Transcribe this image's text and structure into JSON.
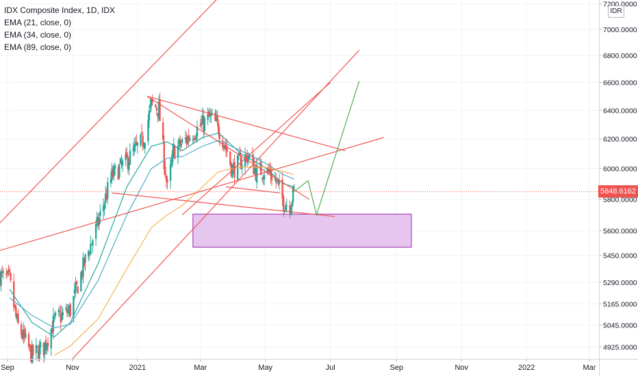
{
  "legend": {
    "title": "IDX Composite Index, 1D, IDX",
    "ema21": "EMA (21, close, 0)",
    "ema34": "EMA (34, close, 0)",
    "ema89": "EMA (89, close, 0)"
  },
  "currency_badge": "IDR",
  "last_price_label": "5848.6162",
  "colors": {
    "up": "#26a69a",
    "down": "#ef5350",
    "ema21": "#26a69a",
    "ema34": "#4dabc9",
    "ema89": "#f5b453",
    "trendline": "#ef5350",
    "projection": "#4caf50",
    "zone_fill": "#e6c6ee",
    "zone_border": "#9c27b0",
    "axis_text": "#131722",
    "grid": "#f0f3fa"
  },
  "chart_data": {
    "type": "candlestick",
    "title": "IDX Composite Index, 1D, IDX",
    "xlabel": "",
    "ylabel": "",
    "x_ticks": [
      "Sep",
      "Nov",
      "2021",
      "Mar",
      "May",
      "Jul",
      "Sep",
      "Nov",
      "2022",
      "Mar"
    ],
    "x_tick_dates": [
      "2020-09-01",
      "2020-11-01",
      "2021-01-01",
      "2021-03-01",
      "2021-05-01",
      "2021-07-01",
      "2021-09-01",
      "2021-11-01",
      "2022-01-01",
      "2022-03-01"
    ],
    "y_ticks": [
      7200,
      7000,
      6800,
      6600,
      6400,
      6200,
      6000,
      5800,
      5600,
      5450,
      5290,
      5165,
      5045,
      4925
    ],
    "y_tick_labels": [
      "7200.0000",
      "7000.0000",
      "6800.0000",
      "6600.0000",
      "6400.0000",
      "6200.0000",
      "6000.0000",
      "5800.0000",
      "5600.0000",
      "5450.0000",
      "5290.0000",
      "5165.0000",
      "5045.0000",
      "4925.0000"
    ],
    "y_scale": "log",
    "y_range": [
      4860,
      7220
    ],
    "date_range": [
      "2020-08-25",
      "2022-03-10"
    ],
    "last_price": 5848.6162,
    "price_path": [
      [
        "2020-08-25",
        5330
      ],
      [
        "2020-09-03",
        5300
      ],
      [
        "2020-09-10",
        5050
      ],
      [
        "2020-09-24",
        4880
      ],
      [
        "2020-10-05",
        4920
      ],
      [
        "2020-10-15",
        5070
      ],
      [
        "2020-10-30",
        5130
      ],
      [
        "2020-11-12",
        5400
      ],
      [
        "2020-11-25",
        5650
      ],
      [
        "2020-12-08",
        5950
      ],
      [
        "2020-12-22",
        6050
      ],
      [
        "2021-01-07",
        6200
      ],
      [
        "2021-01-14",
        6440
      ],
      [
        "2021-01-21",
        6410
      ],
      [
        "2021-01-29",
        5860
      ],
      [
        "2021-02-04",
        6120
      ],
      [
        "2021-02-12",
        6170
      ],
      [
        "2021-02-24",
        6260
      ],
      [
        "2021-03-03",
        6300
      ],
      [
        "2021-03-10",
        6350
      ],
      [
        "2021-03-18",
        6280
      ],
      [
        "2021-03-25",
        6140
      ],
      [
        "2021-03-31",
        5990
      ],
      [
        "2021-04-08",
        6050
      ],
      [
        "2021-04-15",
        6090
      ],
      [
        "2021-04-22",
        5980
      ],
      [
        "2021-04-30",
        5990
      ],
      [
        "2021-05-06",
        5970
      ],
      [
        "2021-05-12",
        5900
      ],
      [
        "2021-05-18",
        5780
      ],
      [
        "2021-05-24",
        5770
      ],
      [
        "2021-05-28",
        5850
      ]
    ],
    "series": [
      {
        "name": "EMA (21, close, 0)",
        "values": [
          [
            "2020-09-03",
            5250
          ],
          [
            "2020-09-24",
            5060
          ],
          [
            "2020-10-15",
            4980
          ],
          [
            "2020-10-30",
            5060
          ],
          [
            "2020-11-25",
            5400
          ],
          [
            "2020-12-22",
            5880
          ],
          [
            "2021-01-14",
            6150
          ],
          [
            "2021-01-29",
            6180
          ],
          [
            "2021-02-12",
            6120
          ],
          [
            "2021-03-03",
            6210
          ],
          [
            "2021-03-18",
            6240
          ],
          [
            "2021-04-08",
            6100
          ],
          [
            "2021-04-30",
            6010
          ],
          [
            "2021-05-18",
            5900
          ],
          [
            "2021-05-28",
            5880
          ]
        ]
      },
      {
        "name": "EMA (34, close, 0)",
        "values": [
          [
            "2020-09-03",
            5200
          ],
          [
            "2020-09-24",
            5100
          ],
          [
            "2020-10-15",
            5030
          ],
          [
            "2020-10-30",
            5050
          ],
          [
            "2020-11-25",
            5300
          ],
          [
            "2020-12-22",
            5700
          ],
          [
            "2021-01-14",
            6000
          ],
          [
            "2021-01-29",
            6070
          ],
          [
            "2021-02-12",
            6080
          ],
          [
            "2021-03-03",
            6150
          ],
          [
            "2021-03-18",
            6190
          ],
          [
            "2021-04-08",
            6120
          ],
          [
            "2021-04-30",
            6040
          ],
          [
            "2021-05-18",
            5960
          ],
          [
            "2021-05-28",
            5930
          ]
        ]
      },
      {
        "name": "EMA (89, close, 0)",
        "values": [
          [
            "2020-10-15",
            4880
          ],
          [
            "2020-10-30",
            4930
          ],
          [
            "2020-11-25",
            5080
          ],
          [
            "2020-12-22",
            5370
          ],
          [
            "2021-01-14",
            5620
          ],
          [
            "2021-01-29",
            5700
          ],
          [
            "2021-02-12",
            5760
          ],
          [
            "2021-03-03",
            5880
          ],
          [
            "2021-03-18",
            5980
          ],
          [
            "2021-04-08",
            6010
          ],
          [
            "2021-04-30",
            6010
          ],
          [
            "2021-05-18",
            5980
          ],
          [
            "2021-05-28",
            5960
          ]
        ]
      }
    ],
    "trendlines": [
      {
        "kind": "channel_upper",
        "from": [
          "2020-08-25",
          5650
        ],
        "to": [
          "2021-03-18",
          7250
        ]
      },
      {
        "kind": "channel_lower",
        "from": [
          "2020-11-01",
          4860
        ],
        "to": [
          "2021-07-28",
          6840
        ]
      },
      {
        "kind": "channel_mid",
        "from": [
          "2021-02-12",
          5700
        ],
        "to": [
          "2021-07-01",
          6600
        ]
      },
      {
        "kind": "support_line",
        "from": [
          "2020-08-25",
          5480
        ],
        "to": [
          "2021-08-20",
          6210
        ]
      },
      {
        "kind": "wedge_upper",
        "from": [
          "2021-01-10",
          6500
        ],
        "to": [
          "2021-07-15",
          6120
        ]
      },
      {
        "kind": "wedge_lower",
        "from": [
          "2020-12-08",
          5840
        ],
        "to": [
          "2021-07-05",
          5690
        ]
      },
      {
        "kind": "falling_resistance",
        "from": [
          "2021-01-10",
          6500
        ],
        "to": [
          "2021-06-11",
          5800
        ]
      },
      {
        "kind": "local_support",
        "from": [
          "2021-03-25",
          5880
        ],
        "to": [
          "2021-05-15",
          5840
        ]
      }
    ],
    "projection": [
      [
        "2021-05-28",
        5850
      ],
      [
        "2021-06-10",
        5920
      ],
      [
        "2021-06-18",
        5700
      ],
      [
        "2021-07-28",
        6610
      ]
    ],
    "demand_zone": {
      "date_from": "2021-02-22",
      "date_to": "2021-09-15",
      "price_low": 5500,
      "price_high": 5705
    }
  }
}
